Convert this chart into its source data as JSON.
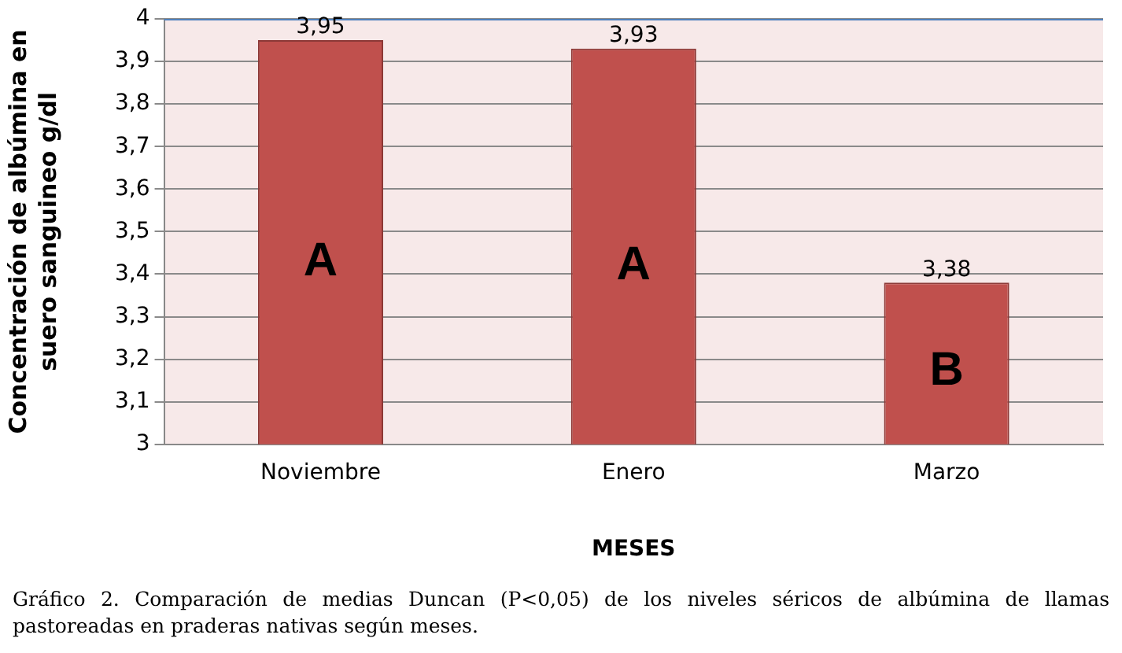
{
  "chart_data": {
    "type": "bar",
    "xlabel": "MESES",
    "ylabel": "Concentración de albúmina en suero sanguineo g/dl",
    "categories": [
      "Noviembre",
      "Enero",
      "Marzo"
    ],
    "values": [
      3.95,
      3.93,
      3.38
    ],
    "color": "#c0504d",
    "value_labels": [
      "3,95",
      "3,93",
      "3,38"
    ],
    "ylim": [
      3,
      4
    ],
    "yticks": [
      {
        "value": 3,
        "label": "3"
      },
      {
        "value": 3.1,
        "label": "3,1"
      },
      {
        "value": 3.2,
        "label": "3,2"
      },
      {
        "value": 3.3,
        "label": "3,3"
      },
      {
        "value": 3.4,
        "label": "3,4"
      },
      {
        "value": 3.5,
        "label": "3,5"
      },
      {
        "value": 3.6,
        "label": "3,6"
      },
      {
        "value": 3.7,
        "label": "3,7"
      },
      {
        "value": 3.8,
        "label": "3,8"
      },
      {
        "value": 3.9,
        "label": "3,9"
      },
      {
        "value": 4,
        "label": "4"
      }
    ],
    "grid": "y",
    "legend": false,
    "annotations": [
      "A",
      "A",
      "B",
      "Gráfico 2. Comparación de medias Duncan (P<0,05) de los niveles séricos de albúmina de llamas pastoreadas en praderas nativas según meses."
    ]
  }
}
